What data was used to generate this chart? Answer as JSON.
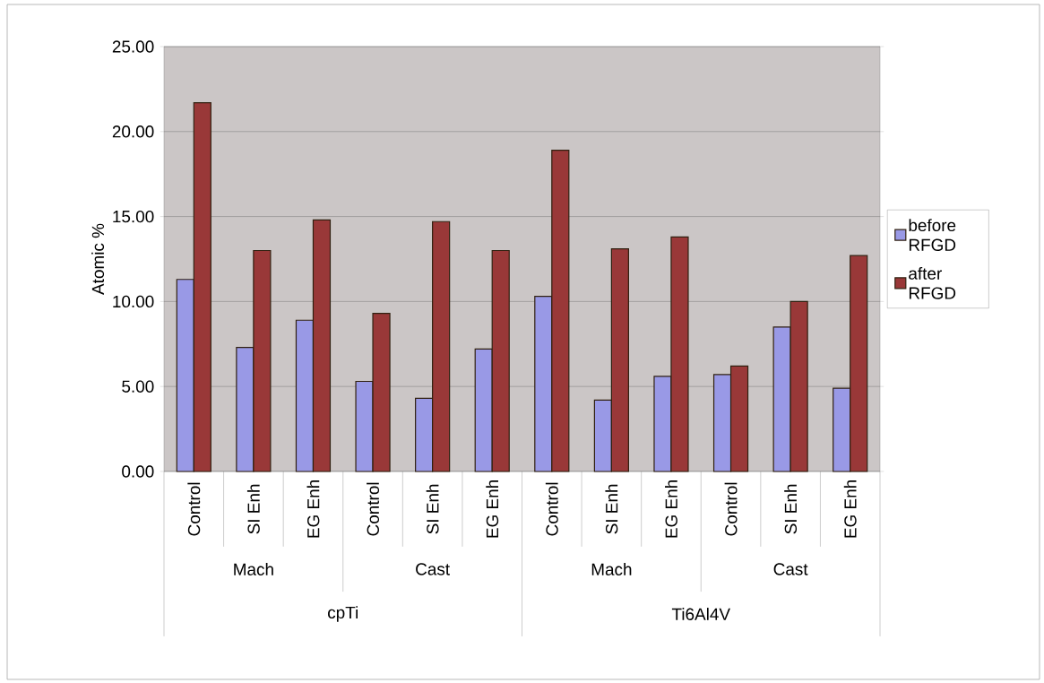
{
  "chart_data": {
    "type": "bar",
    "ylabel": "Atomic %",
    "categories": [
      "Control",
      "SI Enh",
      "EG Enh",
      "Control",
      "SI Enh",
      "EG Enh",
      "Control",
      "SI Enh",
      "EG Enh",
      "Control",
      "SI Enh",
      "EG Enh"
    ],
    "annotations": [
      "Mach",
      "Cast",
      "Mach",
      "Cast",
      "cpTi",
      "Ti6Al4V"
    ],
    "series": [
      {
        "name": "before RFGD",
        "color": "#9999e6",
        "values": [
          11.3,
          7.3,
          8.9,
          5.3,
          4.3,
          7.2,
          10.3,
          4.2,
          5.6,
          5.7,
          8.5,
          4.9
        ]
      },
      {
        "name": "after RFGD",
        "color": "#993838",
        "values": [
          21.7,
          13.0,
          14.8,
          9.3,
          14.7,
          13.0,
          18.9,
          13.1,
          13.8,
          6.2,
          10.0,
          12.7
        ]
      }
    ],
    "ylim": [
      0,
      25
    ],
    "yticks": [
      {
        "value": 0,
        "label": "0.00"
      },
      {
        "value": 5,
        "label": "5.00"
      },
      {
        "value": 10,
        "label": "10.00"
      },
      {
        "value": 15,
        "label": "15.00"
      },
      {
        "value": 20,
        "label": "20.00"
      },
      {
        "value": 25,
        "label": "25.00"
      }
    ],
    "grid": "y",
    "legend": "right"
  }
}
